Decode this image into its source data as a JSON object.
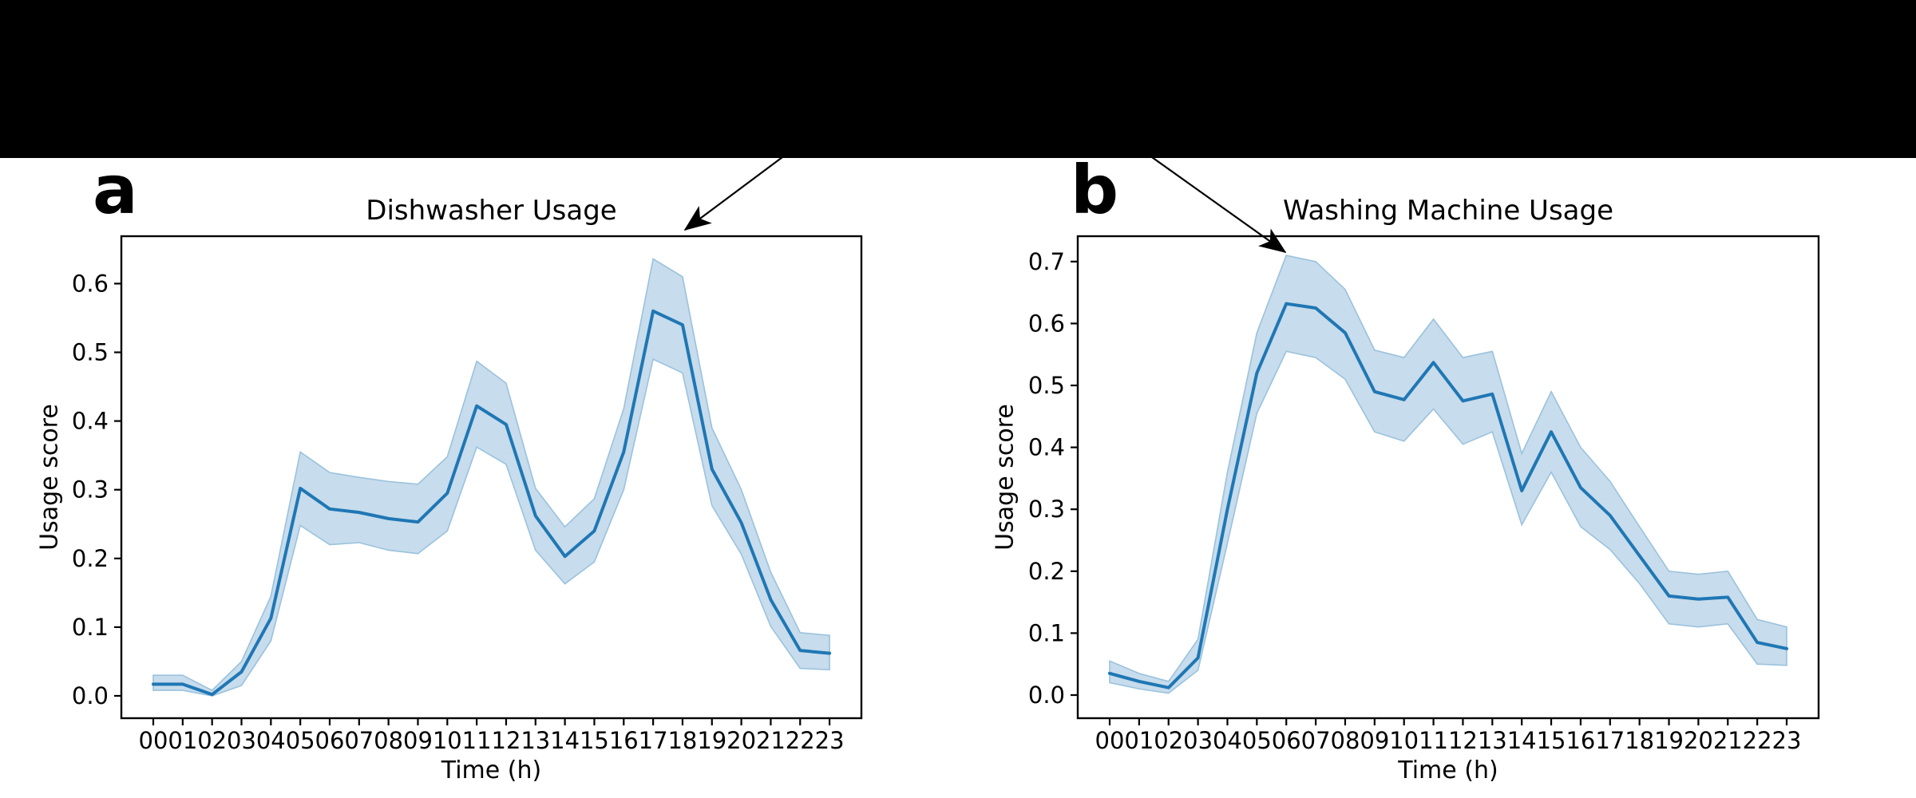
{
  "page": {
    "background_color": "#ffffff",
    "redaction_bar_color": "#000000"
  },
  "panels": [
    {
      "label": "a"
    },
    {
      "label": "b"
    }
  ],
  "chart_data": [
    {
      "type": "line",
      "title": "Dishwasher Usage",
      "xlabel": "Time (h)",
      "ylabel": "Usage score",
      "x_tick_labels": [
        "00",
        "01",
        "02",
        "03",
        "04",
        "05",
        "06",
        "07",
        "08",
        "09",
        "10",
        "11",
        "12",
        "13",
        "14",
        "15",
        "16",
        "17",
        "18",
        "19",
        "20",
        "21",
        "22",
        "23"
      ],
      "y_tick_labels": [
        "0.0",
        "0.1",
        "0.2",
        "0.3",
        "0.4",
        "0.5",
        "0.6"
      ],
      "y_tick_values": [
        0.0,
        0.1,
        0.2,
        0.3,
        0.4,
        0.5,
        0.6
      ],
      "ylim": [
        -0.033,
        0.669
      ],
      "grid": false,
      "legend": null,
      "line_color": "#1f77b4",
      "band_fill_color": "#c7dcec",
      "band_edge_color": "#9ac2dd",
      "series": [
        {
          "name": "mean",
          "values": [
            0.017,
            0.017,
            0.002,
            0.035,
            0.113,
            0.302,
            0.272,
            0.267,
            0.258,
            0.253,
            0.295,
            0.422,
            0.395,
            0.262,
            0.203,
            0.24,
            0.355,
            0.56,
            0.54,
            0.33,
            0.252,
            0.14,
            0.066,
            0.062
          ]
        },
        {
          "name": "band_lower",
          "values": [
            0.008,
            0.008,
            0.0,
            0.015,
            0.08,
            0.248,
            0.22,
            0.223,
            0.212,
            0.207,
            0.24,
            0.362,
            0.337,
            0.212,
            0.163,
            0.195,
            0.3,
            0.49,
            0.47,
            0.277,
            0.206,
            0.101,
            0.04,
            0.038
          ]
        },
        {
          "name": "band_upper",
          "values": [
            0.03,
            0.03,
            0.008,
            0.05,
            0.145,
            0.355,
            0.325,
            0.318,
            0.312,
            0.308,
            0.348,
            0.487,
            0.455,
            0.302,
            0.246,
            0.287,
            0.418,
            0.636,
            0.61,
            0.39,
            0.3,
            0.18,
            0.092,
            0.088
          ]
        }
      ]
    },
    {
      "type": "line",
      "title": "Washing Machine Usage",
      "xlabel": "Time (h)",
      "ylabel": "Usage score",
      "x_tick_labels": [
        "00",
        "01",
        "02",
        "03",
        "04",
        "05",
        "06",
        "07",
        "08",
        "09",
        "10",
        "11",
        "12",
        "13",
        "14",
        "15",
        "16",
        "17",
        "18",
        "19",
        "20",
        "21",
        "22",
        "23"
      ],
      "y_tick_labels": [
        "0.0",
        "0.1",
        "0.2",
        "0.3",
        "0.4",
        "0.5",
        "0.6",
        "0.7"
      ],
      "y_tick_values": [
        0.0,
        0.1,
        0.2,
        0.3,
        0.4,
        0.5,
        0.6,
        0.7
      ],
      "ylim": [
        -0.037,
        0.741
      ],
      "grid": false,
      "legend": null,
      "line_color": "#1f77b4",
      "band_fill_color": "#c7dcec",
      "band_edge_color": "#9ac2dd",
      "series": [
        {
          "name": "mean",
          "values": [
            0.035,
            0.022,
            0.012,
            0.06,
            0.3,
            0.52,
            0.632,
            0.625,
            0.585,
            0.49,
            0.477,
            0.537,
            0.475,
            0.486,
            0.33,
            0.425,
            0.335,
            0.29,
            0.225,
            0.16,
            0.155,
            0.158,
            0.085,
            0.075
          ]
        },
        {
          "name": "band_lower",
          "values": [
            0.02,
            0.01,
            0.003,
            0.04,
            0.245,
            0.455,
            0.555,
            0.545,
            0.51,
            0.425,
            0.41,
            0.462,
            0.405,
            0.425,
            0.275,
            0.36,
            0.272,
            0.235,
            0.18,
            0.115,
            0.11,
            0.115,
            0.05,
            0.048
          ]
        },
        {
          "name": "band_upper",
          "values": [
            0.055,
            0.035,
            0.022,
            0.09,
            0.36,
            0.585,
            0.71,
            0.7,
            0.655,
            0.557,
            0.545,
            0.607,
            0.545,
            0.555,
            0.39,
            0.49,
            0.4,
            0.345,
            0.272,
            0.2,
            0.195,
            0.2,
            0.122,
            0.11
          ]
        }
      ]
    }
  ],
  "annotations": [
    {
      "name": "arrow-to-dishwasher-chart"
    },
    {
      "name": "arrow-to-washing-machine-peak"
    }
  ]
}
